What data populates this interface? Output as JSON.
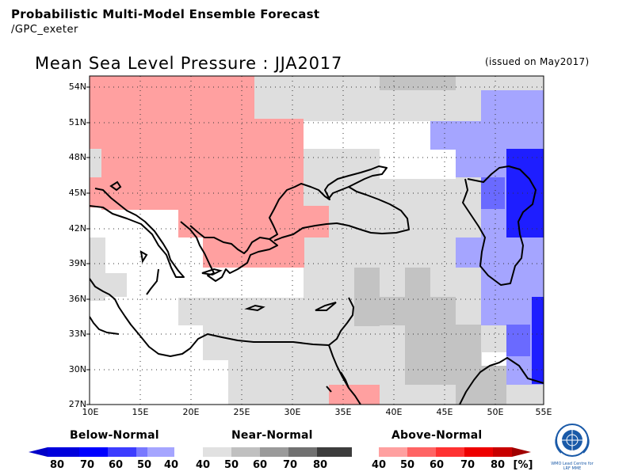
{
  "header": {
    "title": "Probabilistic Multi-Model Ensemble Forecast",
    "subtitle": "/GPC_exeter"
  },
  "map": {
    "title": "Mean Sea Level Pressure : JJA2017",
    "issued": "(issued on May2017)",
    "lat_labels": [
      "54N",
      "51N",
      "48N",
      "45N",
      "42N",
      "39N",
      "36N",
      "33N",
      "30N",
      "27N"
    ],
    "lon_labels": [
      "10E",
      "15E",
      "20E",
      "25E",
      "30E",
      "35E",
      "40E",
      "45E",
      "50E",
      "55E"
    ],
    "lon_range": [
      10,
      55
    ],
    "lat_range": [
      27,
      55.5
    ],
    "region": "Mediterranean / Black Sea / Middle East"
  },
  "legend": {
    "below_label": "Below-Normal",
    "near_label": "Near-Normal",
    "above_label": "Above-Normal",
    "below_values": [
      "80",
      "70",
      "60",
      "50",
      "40"
    ],
    "near_values": [
      "40",
      "50",
      "60",
      "70",
      "80"
    ],
    "above_values": [
      "40",
      "50",
      "60",
      "70",
      "80"
    ],
    "unit": "[%]",
    "colors": {
      "below": [
        "#0000c8",
        "#0000ff",
        "#3c3cff",
        "#7878ff",
        "#a0a0ff"
      ],
      "near": [
        "#e1e1e1",
        "#c0c0c0",
        "#9a9a9a",
        "#717171",
        "#3c3c3c"
      ],
      "above": [
        "#ffa0a0",
        "#ff6464",
        "#ff3232",
        "#ee0000",
        "#c80000"
      ]
    }
  },
  "logo": {
    "caption": "WMO Lead Centre for LRF MME"
  }
}
